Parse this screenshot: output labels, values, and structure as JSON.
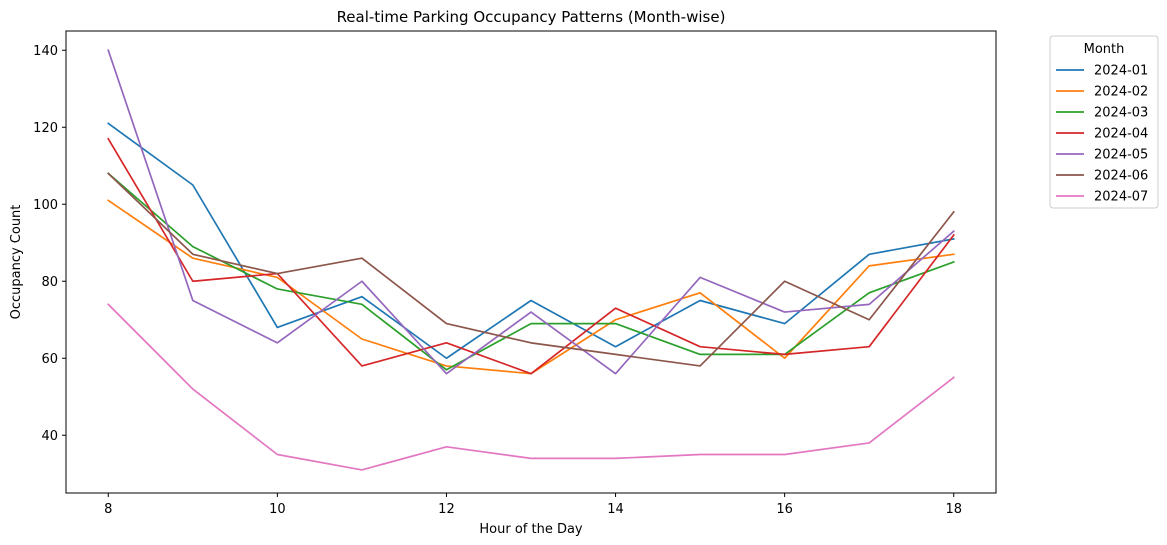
{
  "chart_data": {
    "type": "line",
    "title": "Real-time Parking Occupancy Patterns (Month-wise)",
    "xlabel": "Hour of the Day",
    "ylabel": "Occupancy Count",
    "x": [
      8,
      9,
      10,
      11,
      12,
      13,
      14,
      15,
      16,
      17,
      18
    ],
    "xlim": [
      7.5,
      18.5
    ],
    "ylim": [
      25,
      145
    ],
    "xticks": [
      8,
      10,
      12,
      14,
      16,
      18
    ],
    "yticks": [
      40,
      60,
      80,
      100,
      120,
      140
    ],
    "grid": false,
    "legend": {
      "title": "Month",
      "placement": "outside upper right"
    },
    "series": [
      {
        "name": "2024-01",
        "color": "#1f77b4",
        "values": [
          121,
          105,
          68,
          76,
          60,
          75,
          63,
          75,
          69,
          87,
          91
        ]
      },
      {
        "name": "2024-02",
        "color": "#ff7f0e",
        "values": [
          101,
          86,
          81,
          65,
          58,
          56,
          70,
          77,
          60,
          84,
          87
        ]
      },
      {
        "name": "2024-03",
        "color": "#2ca02c",
        "values": [
          108,
          89,
          78,
          74,
          57,
          69,
          69,
          61,
          61,
          77,
          85
        ]
      },
      {
        "name": "2024-04",
        "color": "#d62728",
        "values": [
          117,
          80,
          82,
          58,
          64,
          56,
          73,
          63,
          61,
          63,
          92
        ]
      },
      {
        "name": "2024-05",
        "color": "#9467bd",
        "values": [
          140,
          75,
          64,
          80,
          56,
          72,
          56,
          81,
          72,
          74,
          93
        ]
      },
      {
        "name": "2024-06",
        "color": "#8c564b",
        "values": [
          108,
          87,
          82,
          86,
          69,
          64,
          61,
          58,
          80,
          70,
          98
        ]
      },
      {
        "name": "2024-07",
        "color": "#e377c2",
        "values": [
          74,
          52,
          35,
          31,
          37,
          34,
          34,
          35,
          35,
          38,
          55
        ]
      }
    ]
  }
}
